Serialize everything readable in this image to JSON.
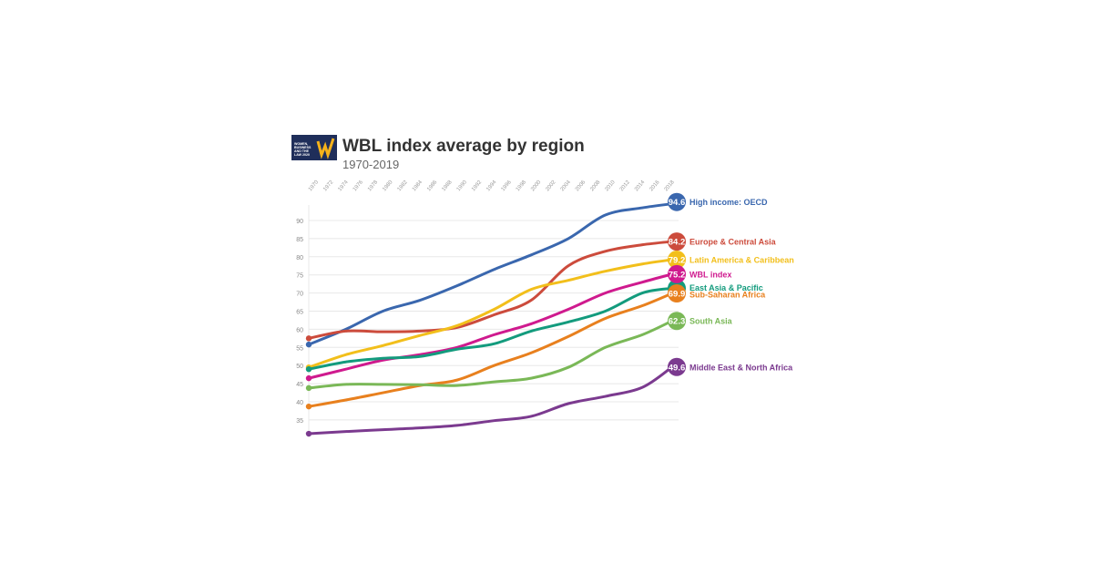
{
  "title": "WBL index average by region",
  "subtitle": "1970-2019",
  "logo_text": "WOMEN, BUSINESS AND THE LAW 2020",
  "chart_data": {
    "type": "line",
    "title": "WBL index average by region",
    "subtitle": "1970-2019",
    "xlim": [
      1970,
      2019
    ],
    "ylim": [
      31,
      95
    ],
    "x_ticks": [
      1970,
      1972,
      1974,
      1976,
      1978,
      1980,
      1982,
      1984,
      1986,
      1988,
      1990,
      1992,
      1994,
      1996,
      1998,
      2000,
      2002,
      2004,
      2006,
      2008,
      2010,
      2012,
      2014,
      2016,
      2018
    ],
    "y_ticks": [
      35,
      40,
      45,
      50,
      55,
      60,
      65,
      70,
      75,
      80,
      85,
      90
    ],
    "grid": "horizontal",
    "legend": "end-labels",
    "x": [
      1970,
      1975,
      1980,
      1985,
      1990,
      1995,
      2000,
      2005,
      2010,
      2015,
      2019
    ],
    "series": [
      {
        "name": "High income: OECD",
        "color": "#3a67ae",
        "end_value": "94.6",
        "values": [
          55.8,
          60,
          65,
          68,
          72,
          76.5,
          80.5,
          85,
          91.5,
          93.5,
          94.6
        ]
      },
      {
        "name": "Europe & Central Asia",
        "color": "#cc4b3c",
        "end_value": "84.2",
        "values": [
          57.5,
          59.5,
          59.3,
          59.5,
          60.5,
          64,
          68,
          77.5,
          81.5,
          83.3,
          84.2
        ]
      },
      {
        "name": "Latin America & Caribbean",
        "color": "#f2bf1b",
        "end_value": "79.2",
        "values": [
          49.5,
          53,
          55.5,
          58.3,
          61,
          65.5,
          71,
          73.5,
          76,
          78,
          79.2
        ]
      },
      {
        "name": "WBL index",
        "color": "#cf1a8e",
        "end_value": "75.2",
        "values": [
          46.5,
          49,
          51.5,
          53,
          55,
          58.5,
          61.5,
          65.5,
          70,
          73,
          75.2
        ]
      },
      {
        "name": "East Asia & Pacific",
        "color": "#139b7d",
        "end_value": "",
        "values": [
          49,
          51,
          52,
          52.5,
          54.5,
          56,
          59.5,
          62,
          65,
          70,
          71.3
        ]
      },
      {
        "name": "Sub-Saharan Africa",
        "color": "#e8801e",
        "end_value": "69.9",
        "values": [
          38.7,
          40.5,
          42.5,
          44.5,
          46,
          50,
          53.5,
          58,
          63,
          66.5,
          69.9
        ]
      },
      {
        "name": "South Asia",
        "color": "#7ab857",
        "end_value": "62.3",
        "values": [
          43.8,
          44.8,
          44.8,
          44.7,
          44.5,
          45.5,
          46.5,
          49.5,
          55,
          58.5,
          62.3
        ]
      },
      {
        "name": "Middle East & North Africa",
        "color": "#7b3a8f",
        "end_value": "49.6",
        "values": [
          31.2,
          31.8,
          32.3,
          32.8,
          33.5,
          34.8,
          36,
          39.5,
          41.5,
          44,
          49.6
        ]
      }
    ]
  }
}
